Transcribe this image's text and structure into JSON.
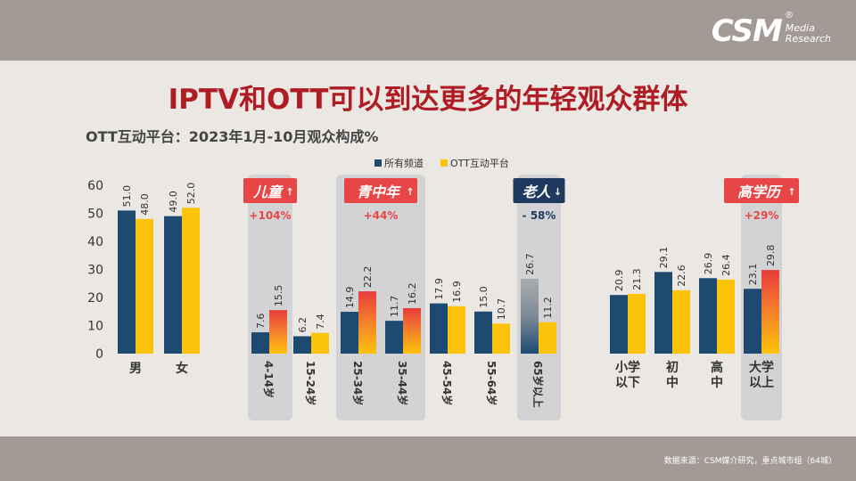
{
  "header": {
    "logo_main": "CSM",
    "logo_reg": "®",
    "logo_sub_line1": "Media",
    "logo_sub_line2": "Research"
  },
  "title": "IPTV和OTT可以到达更多的年轻观众群体",
  "subtitle": "OTT互动平台：2023年1月-10月观众构成%",
  "footer": {
    "source": "数据来源：CSM媒介研究，重点城市组（64城）"
  },
  "colors": {
    "all_channels": "#1e4a72",
    "ott": "#fcc30b",
    "highlight": "#e83b3b",
    "badge_red": "#e84646",
    "badge_navy": "#1e3a5f",
    "title": "#b01c24"
  },
  "chart_data": {
    "type": "bar",
    "ylim": [
      0,
      60
    ],
    "yticks": [
      0,
      10,
      20,
      30,
      40,
      50,
      60
    ],
    "categories": [
      "男",
      "女",
      "4-14岁",
      "15-24岁",
      "25-34岁",
      "35-44岁",
      "45-54岁",
      "55-64岁",
      "65岁以上",
      "小学以下",
      "初中",
      "高中",
      "大学以上"
    ],
    "series": [
      {
        "name": "所有频道",
        "values": [
          51.0,
          49.0,
          7.6,
          6.2,
          14.9,
          11.7,
          17.9,
          15.0,
          26.7,
          20.9,
          29.1,
          26.9,
          23.1
        ]
      },
      {
        "name": "OTT互动平台",
        "values": [
          48.0,
          52.0,
          15.5,
          7.4,
          22.2,
          16.2,
          16.9,
          10.7,
          11.2,
          21.3,
          22.6,
          26.4,
          29.8
        ]
      }
    ],
    "value_labels": [
      [
        "51.0",
        "49.0",
        "7.6",
        "6.2",
        "14.9",
        "11.7",
        "17.9",
        "15.0",
        "26.7",
        "20.9",
        "29.1",
        "26.9",
        "23.1"
      ],
      [
        "48.0",
        "52.0",
        "15.5",
        "7.4",
        "22.2",
        "16.2",
        "16.9",
        "10.7",
        "11.2",
        "21.3",
        "22.6",
        "26.4",
        "29.8"
      ]
    ],
    "highlighted_ott": [
      "4-14岁",
      "25-34岁",
      "35-44岁",
      "大学以上"
    ],
    "faded_all": [
      "65岁以上"
    ],
    "legend": [
      {
        "name": "所有频道",
        "color": "#1e4a72"
      },
      {
        "name": "OTT互动平台",
        "color": "#fcc30b"
      }
    ],
    "annotations": [
      {
        "label": "儿童",
        "arrow": "↑",
        "change": "+104%",
        "style": "red",
        "categories": [
          "4-14岁"
        ]
      },
      {
        "label": "青中年",
        "arrow": "↑",
        "change": "+44%",
        "style": "red",
        "categories": [
          "25-34岁",
          "35-44岁"
        ]
      },
      {
        "label": "老人",
        "arrow": "↓",
        "change": "- 58%",
        "style": "navy",
        "categories": [
          "65岁以上"
        ]
      },
      {
        "label": "高学历",
        "arrow": "↑",
        "change": "+29%",
        "style": "red",
        "categories": [
          "大学以上"
        ]
      }
    ]
  }
}
